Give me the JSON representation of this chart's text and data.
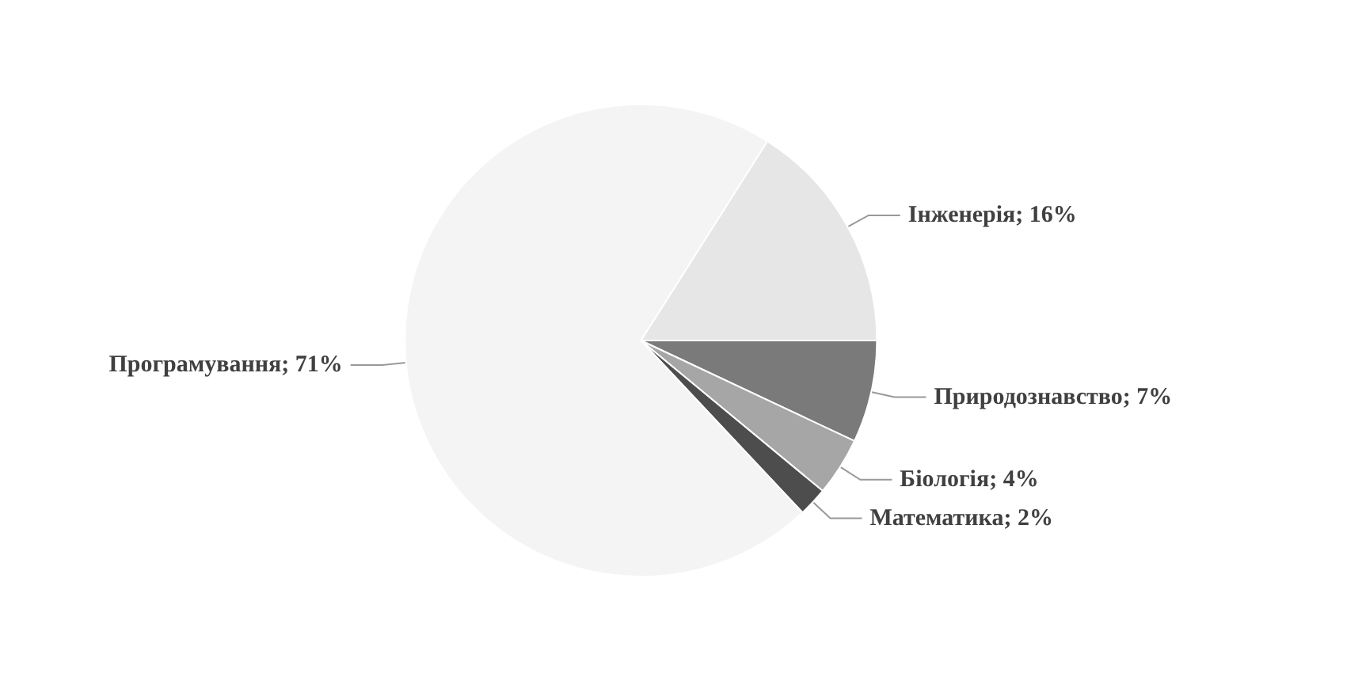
{
  "chart_data": {
    "type": "pie",
    "categories": [
      "Інженерія",
      "Природознавство",
      "Біологія",
      "Математика",
      "Програмування"
    ],
    "value_labels": [
      "16%",
      "7%",
      "4%",
      "2%",
      "71%"
    ],
    "values": [
      16,
      7,
      4,
      2,
      71
    ],
    "colors": [
      "#e6e6e6",
      "#7a7a7a",
      "#a6a6a6",
      "#4d4d4d",
      "#f4f4f4"
    ],
    "legend": false
  }
}
